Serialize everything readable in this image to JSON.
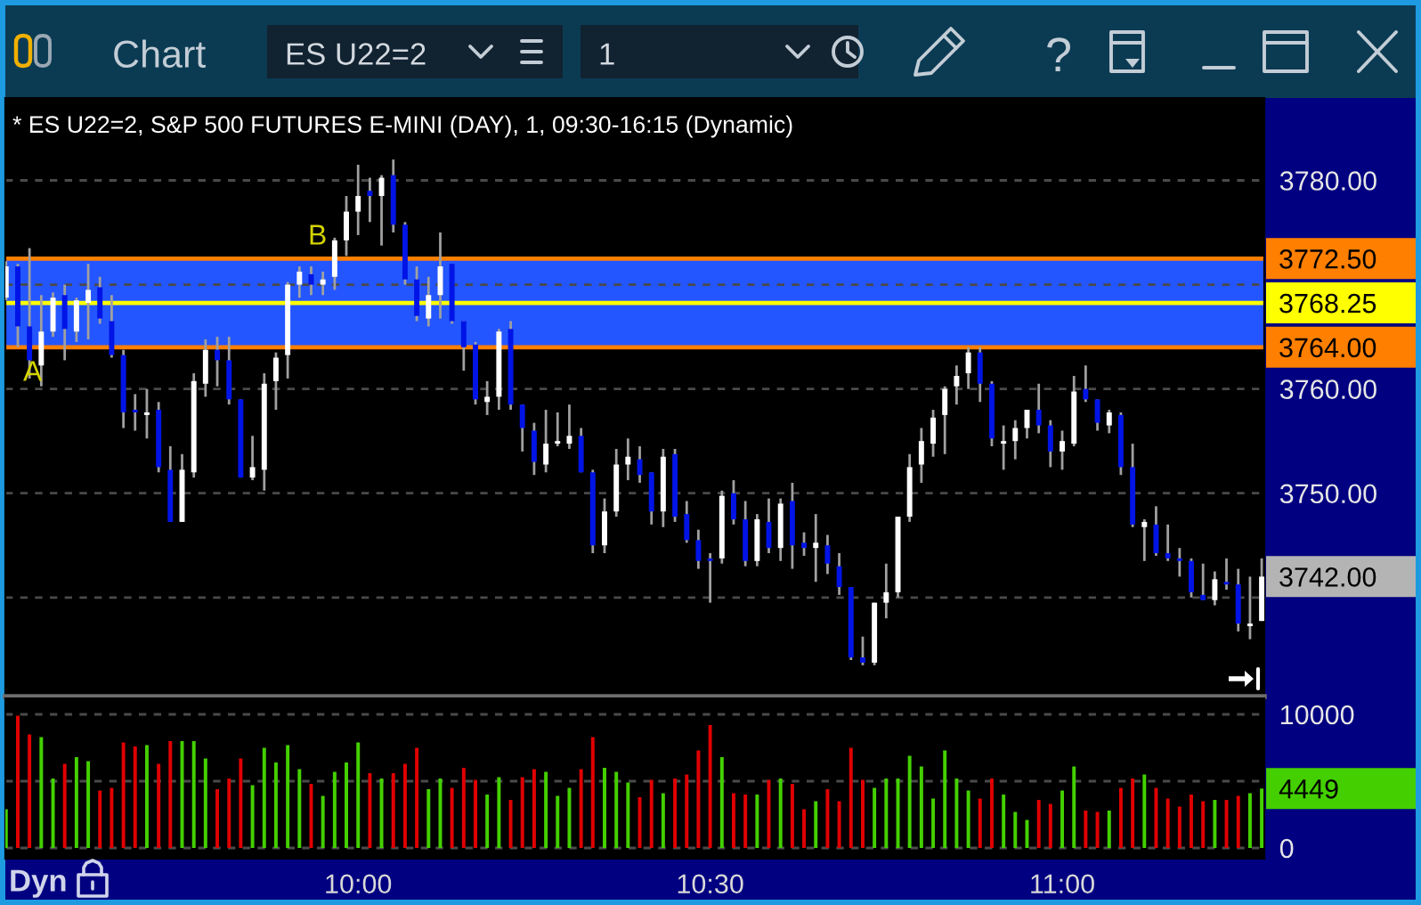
{
  "chart_data": [
    {
      "type": "candlestick",
      "title": "* ES U22=2, S&P 500 FUTURES E-MINI (DAY), 1, 09:30-16:15 (Dynamic)",
      "x": [
        9.5,
        9.5167,
        9.5333,
        9.55,
        9.5667,
        9.5833,
        9.6,
        9.6167,
        9.6333,
        9.65,
        9.6667,
        9.6833,
        9.7,
        9.7167,
        9.7333,
        9.75,
        9.7667,
        9.7833,
        9.8,
        9.8167,
        9.8333,
        9.85,
        9.8667,
        9.8833,
        9.9,
        9.9167,
        9.9333,
        9.95,
        9.9667,
        9.9833,
        10.0,
        10.0167,
        10.0333,
        10.05,
        10.0667,
        10.0833,
        10.1,
        10.1167,
        10.1333,
        10.15,
        10.1667,
        10.1833,
        10.2,
        10.2167,
        10.2333,
        10.25,
        10.2667,
        10.2833,
        10.3,
        10.3167,
        10.3333,
        10.35,
        10.3667,
        10.3833,
        10.4,
        10.4167,
        10.4333,
        10.45,
        10.4667,
        10.4833,
        10.5,
        10.5167,
        10.5333,
        10.55,
        10.5667,
        10.5833,
        10.6,
        10.6167,
        10.6333,
        10.65,
        10.6667,
        10.6833,
        10.7,
        10.7167,
        10.7333,
        10.75,
        10.7667,
        10.7833,
        10.8,
        10.8167,
        10.8333,
        10.85,
        10.8667,
        10.8833,
        10.9,
        10.9167,
        10.9333,
        10.95,
        10.9667,
        10.9833,
        11.0,
        11.0167,
        11.0333,
        11.05,
        11.0667,
        11.0833,
        11.1,
        11.1167,
        11.1333,
        11.15,
        11.1667,
        11.1833,
        11.2,
        11.2167,
        11.2333,
        11.25,
        11.2667,
        11.2833
      ],
      "ohlc": [
        [
          3768.75,
          3772.25,
          3768.5,
          3771.75
        ],
        [
          3771.75,
          3772.0,
          3764.0,
          3766.0
        ],
        [
          3766.0,
          3773.5,
          3761.0,
          3762.75
        ],
        [
          3762.25,
          3769.0,
          3760.25,
          3765.5
        ],
        [
          3765.5,
          3769.25,
          3765.0,
          3768.75
        ],
        [
          3769.0,
          3770.0,
          3762.75,
          3765.75
        ],
        [
          3765.5,
          3768.75,
          3764.5,
          3768.5
        ],
        [
          3768.25,
          3772.0,
          3764.75,
          3769.5
        ],
        [
          3769.75,
          3770.75,
          3766.25,
          3766.75
        ],
        [
          3766.5,
          3769.0,
          3763.0,
          3763.25
        ],
        [
          3763.25,
          3763.75,
          3756.25,
          3757.75
        ],
        [
          3758.0,
          3759.5,
          3756.0,
          3757.75
        ],
        [
          3757.5,
          3760.0,
          3755.25,
          3757.75
        ],
        [
          3758.0,
          3758.75,
          3752.0,
          3752.5
        ],
        [
          3752.25,
          3754.5,
          3747.25,
          3747.25
        ],
        [
          3747.25,
          3753.75,
          3747.25,
          3752.25
        ],
        [
          3752.0,
          3761.5,
          3751.5,
          3760.75
        ],
        [
          3760.5,
          3764.75,
          3759.25,
          3763.75
        ],
        [
          3763.75,
          3765.0,
          3760.25,
          3762.75
        ],
        [
          3762.75,
          3765.0,
          3758.5,
          3759.0
        ],
        [
          3759.0,
          3759.0,
          3751.5,
          3751.5
        ],
        [
          3751.5,
          3755.5,
          3751.25,
          3752.5
        ],
        [
          3752.25,
          3761.5,
          3750.25,
          3760.5
        ],
        [
          3760.75,
          3763.5,
          3758.0,
          3763.0
        ],
        [
          3763.25,
          3770.25,
          3761.0,
          3770.0
        ],
        [
          3770.0,
          3771.75,
          3768.75,
          3771.25
        ],
        [
          3771.0,
          3771.75,
          3769.0,
          3770.0
        ],
        [
          3770.0,
          3771.25,
          3769.0,
          3770.5
        ],
        [
          3770.75,
          3774.5,
          3769.5,
          3774.25
        ],
        [
          3774.25,
          3778.5,
          3772.75,
          3777.0
        ],
        [
          3777.0,
          3781.5,
          3774.75,
          3778.5
        ],
        [
          3779.0,
          3780.25,
          3776.0,
          3778.5
        ],
        [
          3778.5,
          3780.5,
          3773.75,
          3780.25
        ],
        [
          3780.5,
          3782.0,
          3775.0,
          3775.75
        ],
        [
          3775.75,
          3776.0,
          3770.0,
          3770.5
        ],
        [
          3770.5,
          3771.75,
          3766.5,
          3767.0
        ],
        [
          3766.75,
          3770.75,
          3766.0,
          3769.0
        ],
        [
          3769.0,
          3775.0,
          3766.75,
          3771.75
        ],
        [
          3772.0,
          3772.0,
          3766.25,
          3766.5
        ],
        [
          3766.5,
          3766.5,
          3761.75,
          3764.0
        ],
        [
          3764.25,
          3764.5,
          3758.5,
          3759.0
        ],
        [
          3758.75,
          3760.75,
          3757.5,
          3759.25
        ],
        [
          3759.25,
          3765.75,
          3758.0,
          3765.5
        ],
        [
          3765.75,
          3766.5,
          3758.0,
          3758.5
        ],
        [
          3758.5,
          3758.5,
          3754.0,
          3756.25
        ],
        [
          3756.0,
          3756.75,
          3751.75,
          3753.0
        ],
        [
          3752.75,
          3758.0,
          3752.0,
          3754.75
        ],
        [
          3754.75,
          3757.75,
          3754.5,
          3755.0
        ],
        [
          3754.75,
          3758.5,
          3754.25,
          3755.5
        ],
        [
          3755.5,
          3756.25,
          3752.0,
          3752.0
        ],
        [
          3752.0,
          3752.25,
          3744.25,
          3745.0
        ],
        [
          3745.0,
          3749.5,
          3744.25,
          3748.25
        ],
        [
          3748.25,
          3754.25,
          3747.75,
          3752.75
        ],
        [
          3752.75,
          3755.25,
          3751.25,
          3753.5
        ],
        [
          3753.25,
          3754.5,
          3751.0,
          3751.75
        ],
        [
          3752.0,
          3752.0,
          3747.0,
          3748.25
        ],
        [
          3748.25,
          3754.25,
          3746.75,
          3753.5
        ],
        [
          3753.75,
          3754.25,
          3747.25,
          3747.75
        ],
        [
          3748.0,
          3749.25,
          3745.25,
          3745.5
        ],
        [
          3745.5,
          3746.5,
          3742.75,
          3743.5
        ],
        [
          3743.75,
          3744.25,
          3739.5,
          3743.5
        ],
        [
          3743.75,
          3750.25,
          3743.25,
          3749.75
        ],
        [
          3750.0,
          3751.25,
          3747.0,
          3747.5
        ],
        [
          3747.5,
          3749.25,
          3743.0,
          3743.5
        ],
        [
          3743.5,
          3748.0,
          3743.0,
          3747.5
        ],
        [
          3747.25,
          3749.5,
          3744.25,
          3744.75
        ],
        [
          3744.75,
          3749.5,
          3743.5,
          3749.0
        ],
        [
          3749.25,
          3751.0,
          3742.75,
          3745.0
        ],
        [
          3745.25,
          3746.25,
          3744.0,
          3744.75
        ],
        [
          3744.75,
          3748.0,
          3741.5,
          3745.25
        ],
        [
          3745.0,
          3746.0,
          3742.25,
          3743.25
        ],
        [
          3743.0,
          3744.25,
          3740.25,
          3741.0
        ],
        [
          3741.0,
          3741.0,
          3734.0,
          3734.25
        ],
        [
          3734.25,
          3736.25,
          3733.5,
          3733.75
        ],
        [
          3733.75,
          3739.5,
          3733.5,
          3739.5
        ],
        [
          3739.5,
          3743.25,
          3738.0,
          3740.5
        ],
        [
          3740.5,
          3747.75,
          3740.0,
          3747.75
        ],
        [
          3747.75,
          3753.75,
          3747.25,
          3752.5
        ],
        [
          3752.75,
          3756.25,
          3751.0,
          3755.0
        ],
        [
          3754.75,
          3758.0,
          3753.5,
          3757.25
        ],
        [
          3757.5,
          3760.25,
          3753.75,
          3760.0
        ],
        [
          3760.25,
          3762.25,
          3758.5,
          3761.25
        ],
        [
          3761.5,
          3764.0,
          3760.0,
          3763.5
        ],
        [
          3763.5,
          3764.0,
          3758.75,
          3760.5
        ],
        [
          3760.5,
          3760.75,
          3754.5,
          3755.25
        ],
        [
          3754.75,
          3756.5,
          3752.25,
          3755.0
        ],
        [
          3755.0,
          3757.0,
          3753.25,
          3756.25
        ],
        [
          3756.25,
          3758.0,
          3755.25,
          3758.0
        ],
        [
          3758.0,
          3760.5,
          3755.75,
          3756.5
        ],
        [
          3756.5,
          3757.0,
          3752.5,
          3754.0
        ],
        [
          3754.0,
          3756.0,
          3752.25,
          3755.0
        ],
        [
          3754.75,
          3761.25,
          3754.5,
          3759.75
        ],
        [
          3760.0,
          3762.25,
          3758.75,
          3759.0
        ],
        [
          3759.0,
          3759.0,
          3756.0,
          3756.75
        ],
        [
          3756.5,
          3758.0,
          3755.75,
          3757.75
        ],
        [
          3757.5,
          3757.75,
          3751.75,
          3752.5
        ],
        [
          3752.5,
          3754.75,
          3746.75,
          3747.0
        ],
        [
          3746.75,
          3747.5,
          3743.5,
          3747.25
        ],
        [
          3747.0,
          3748.75,
          3744.0,
          3744.25
        ],
        [
          3744.25,
          3747.0,
          3743.5,
          3743.75
        ],
        [
          3743.75,
          3744.75,
          3742.0,
          3743.5
        ],
        [
          3743.5,
          3743.75,
          3740.0,
          3740.5
        ],
        [
          3740.25,
          3743.25,
          3739.75,
          3739.75
        ],
        [
          3739.75,
          3742.5,
          3739.25,
          3741.75
        ],
        [
          3741.5,
          3743.75,
          3740.75,
          3741.25
        ],
        [
          3741.25,
          3742.75,
          3736.75,
          3737.5
        ],
        [
          3737.25,
          3742.0,
          3736.0,
          3737.5
        ],
        [
          3737.75,
          3743.75,
          3737.75,
          3742.0
        ]
      ],
      "colors": [
        "#ffffff",
        "#0014e6",
        "#0014e6",
        "#ffffff",
        "#ffffff",
        "#0014e6",
        "#ffffff",
        "#ffffff",
        "#0014e6",
        "#0014e6",
        "#0014e6",
        "#0014e6",
        "#ffffff",
        "#0014e6",
        "#0014e6",
        "#ffffff",
        "#ffffff",
        "#ffffff",
        "#0014e6",
        "#0014e6",
        "#0014e6",
        "#ffffff",
        "#ffffff",
        "#ffffff",
        "#ffffff",
        "#ffffff",
        "#0014e6",
        "#ffffff",
        "#ffffff",
        "#ffffff",
        "#ffffff",
        "#0014e6",
        "#ffffff",
        "#0014e6",
        "#0014e6",
        "#0014e6",
        "#ffffff",
        "#ffffff",
        "#0014e6",
        "#0014e6",
        "#0014e6",
        "#ffffff",
        "#ffffff",
        "#0014e6",
        "#0014e6",
        "#0014e6",
        "#ffffff",
        "#ffffff",
        "#ffffff",
        "#0014e6",
        "#0014e6",
        "#ffffff",
        "#ffffff",
        "#ffffff",
        "#0014e6",
        "#0014e6",
        "#ffffff",
        "#0014e6",
        "#0014e6",
        "#0014e6",
        "#0014e6",
        "#ffffff",
        "#0014e6",
        "#0014e6",
        "#ffffff",
        "#0014e6",
        "#ffffff",
        "#0014e6",
        "#0014e6",
        "#ffffff",
        "#0014e6",
        "#0014e6",
        "#0014e6",
        "#0014e6",
        "#ffffff",
        "#ffffff",
        "#ffffff",
        "#ffffff",
        "#ffffff",
        "#ffffff",
        "#ffffff",
        "#ffffff",
        "#ffffff",
        "#0014e6",
        "#0014e6",
        "#ffffff",
        "#ffffff",
        "#ffffff",
        "#0014e6",
        "#0014e6",
        "#ffffff",
        "#ffffff",
        "#0014e6",
        "#0014e6",
        "#ffffff",
        "#0014e6",
        "#0014e6",
        "#ffffff",
        "#0014e6",
        "#0014e6",
        "#0014e6",
        "#0014e6",
        "#0014e6",
        "#ffffff",
        "#0014e6",
        "#0014e6",
        "#ffffff",
        "#ffffff"
      ],
      "value_labels": [
        null,
        null,
        null,
        null,
        null,
        null,
        null,
        null,
        null,
        null,
        null,
        null,
        null,
        null,
        null,
        null,
        null,
        null,
        null,
        null,
        null,
        null,
        null,
        null,
        null,
        null,
        null,
        null,
        null,
        null,
        null,
        null,
        null,
        null,
        null,
        null,
        null,
        null,
        null,
        null,
        null,
        null,
        null,
        null,
        null,
        null,
        null,
        null,
        null,
        null,
        null,
        null,
        null,
        null,
        null,
        null,
        null,
        null,
        null,
        null,
        null,
        null,
        null,
        null,
        null,
        null,
        null,
        null,
        null,
        null,
        null,
        null,
        null,
        null,
        null,
        null,
        null,
        null,
        null,
        null,
        null,
        null,
        null,
        null,
        null,
        null,
        null,
        null,
        null,
        null,
        null,
        null,
        null,
        null,
        null,
        null,
        null,
        null,
        null,
        null,
        null,
        null,
        null,
        null,
        null,
        null,
        null,
        "3742.00"
      ],
      "color": "#a0a0a0",
      "xlim": [
        9.499,
        11.287
      ],
      "ylim": [
        3730.5,
        3787.9
      ],
      "yticks": [
        {
          "value": 3740,
          "label": null
        },
        {
          "value": 3750,
          "label": "3750.00"
        },
        {
          "value": 3760,
          "label": "3760.00"
        },
        {
          "value": 3770,
          "label": null
        },
        {
          "value": 3780,
          "label": "3780.00"
        }
      ],
      "tick_labels": "y",
      "grid": "y",
      "bands": [
        {
          "axis": "y",
          "from": 3764,
          "to": 3772.5,
          "color": "#2456ff"
        }
      ],
      "ref_lines": [
        {
          "axis": "y",
          "value": 3772.5,
          "label": "3772.50",
          "color": "#ff7f00"
        },
        {
          "axis": "y",
          "value": 3768.25,
          "label": "3768.25",
          "color": "#ffff00"
        },
        {
          "axis": "y",
          "value": 3764,
          "label": "3764.00",
          "color": "#ff7f00"
        }
      ],
      "annotations": [
        "Chart",
        "ES U22=2",
        "1",
        "A",
        "B"
      ]
    },
    {
      "type": "bar",
      "x": [
        9.5,
        9.5167,
        9.5333,
        9.55,
        9.5667,
        9.5833,
        9.6,
        9.6167,
        9.6333,
        9.65,
        9.6667,
        9.6833,
        9.7,
        9.7167,
        9.7333,
        9.75,
        9.7667,
        9.7833,
        9.8,
        9.8167,
        9.8333,
        9.85,
        9.8667,
        9.8833,
        9.9,
        9.9167,
        9.9333,
        9.95,
        9.9667,
        9.9833,
        10.0,
        10.0167,
        10.0333,
        10.05,
        10.0667,
        10.0833,
        10.1,
        10.1167,
        10.1333,
        10.15,
        10.1667,
        10.1833,
        10.2,
        10.2167,
        10.2333,
        10.25,
        10.2667,
        10.2833,
        10.3,
        10.3167,
        10.3333,
        10.35,
        10.3667,
        10.3833,
        10.4,
        10.4167,
        10.4333,
        10.45,
        10.4667,
        10.4833,
        10.5,
        10.5167,
        10.5333,
        10.55,
        10.5667,
        10.5833,
        10.6,
        10.6167,
        10.6333,
        10.65,
        10.6667,
        10.6833,
        10.7,
        10.7167,
        10.7333,
        10.75,
        10.7667,
        10.7833,
        10.8,
        10.8167,
        10.8333,
        10.85,
        10.8667,
        10.8833,
        10.9,
        10.9167,
        10.9333,
        10.95,
        10.9667,
        10.9833,
        11.0,
        11.0167,
        11.0333,
        11.05,
        11.0667,
        11.0833,
        11.1,
        11.1167,
        11.1333,
        11.15,
        11.1667,
        11.1833,
        11.2,
        11.2167,
        11.2333,
        11.25,
        11.2667,
        11.2833
      ],
      "values": [
        2900,
        9900,
        8500,
        8300,
        5200,
        6300,
        6800,
        6500,
        4300,
        4500,
        7900,
        7600,
        7700,
        6300,
        8000,
        8000,
        8000,
        6700,
        4400,
        5200,
        6700,
        4700,
        7500,
        6400,
        7700,
        5900,
        4800,
        3900,
        5700,
        6400,
        7900,
        5600,
        5200,
        5600,
        6300,
        7500,
        4400,
        5200,
        4500,
        6000,
        5100,
        4000,
        5300,
        3600,
        5300,
        5900,
        5700,
        3900,
        4500,
        5900,
        8300,
        6000,
        5700,
        4900,
        3800,
        5100,
        4100,
        5200,
        5500,
        7300,
        9200,
        6800,
        4100,
        4000,
        4000,
        5100,
        5200,
        4800,
        2900,
        3500,
        4400,
        3500,
        7500,
        5100,
        4500,
        5200,
        5200,
        6900,
        6100,
        3700,
        7300,
        5200,
        4300,
        3700,
        5200,
        4000,
        2700,
        2100,
        3600,
        3300,
        4300,
        6100,
        2800,
        2700,
        2800,
        4500,
        5200,
        5500,
        4500,
        3700,
        3100,
        4000,
        3500,
        3600,
        3600,
        3900,
        4100,
        4449
      ],
      "colors": [
        "#44d000",
        "#e00000",
        "#e00000",
        "#44d000",
        "#44d000",
        "#e00000",
        "#44d000",
        "#44d000",
        "#e00000",
        "#e00000",
        "#e00000",
        "#e00000",
        "#44d000",
        "#e00000",
        "#e00000",
        "#44d000",
        "#44d000",
        "#44d000",
        "#e00000",
        "#e00000",
        "#e00000",
        "#44d000",
        "#44d000",
        "#44d000",
        "#44d000",
        "#44d000",
        "#e00000",
        "#44d000",
        "#44d000",
        "#44d000",
        "#44d000",
        "#e00000",
        "#44d000",
        "#e00000",
        "#e00000",
        "#e00000",
        "#44d000",
        "#44d000",
        "#e00000",
        "#e00000",
        "#e00000",
        "#44d000",
        "#44d000",
        "#e00000",
        "#e00000",
        "#e00000",
        "#44d000",
        "#44d000",
        "#44d000",
        "#e00000",
        "#e00000",
        "#44d000",
        "#44d000",
        "#44d000",
        "#e00000",
        "#e00000",
        "#44d000",
        "#e00000",
        "#e00000",
        "#e00000",
        "#e00000",
        "#44d000",
        "#e00000",
        "#e00000",
        "#44d000",
        "#e00000",
        "#44d000",
        "#e00000",
        "#e00000",
        "#44d000",
        "#e00000",
        "#e00000",
        "#e00000",
        "#e00000",
        "#44d000",
        "#44d000",
        "#44d000",
        "#44d000",
        "#44d000",
        "#44d000",
        "#44d000",
        "#44d000",
        "#44d000",
        "#e00000",
        "#e00000",
        "#44d000",
        "#44d000",
        "#44d000",
        "#e00000",
        "#e00000",
        "#44d000",
        "#44d000",
        "#e00000",
        "#e00000",
        "#44d000",
        "#e00000",
        "#e00000",
        "#44d000",
        "#e00000",
        "#e00000",
        "#e00000",
        "#e00000",
        "#e00000",
        "#44d000",
        "#e00000",
        "#e00000",
        "#44d000",
        "#44d000"
      ],
      "xlim": [
        9.499,
        11.287
      ],
      "ylim": [
        -800,
        11200
      ],
      "xticks": [
        {
          "value": 10,
          "label": "10:00"
        },
        {
          "value": 10.5,
          "label": "10:30"
        },
        {
          "value": 11,
          "label": "11:00"
        }
      ],
      "yticks": [
        0,
        {
          "value": 5000,
          "label": null
        },
        10000
      ],
      "grid": "y",
      "annotations": [
        "Dyn",
        {
          "text": "4449",
          "x": 11.2833,
          "y": 4449
        }
      ]
    }
  ]
}
